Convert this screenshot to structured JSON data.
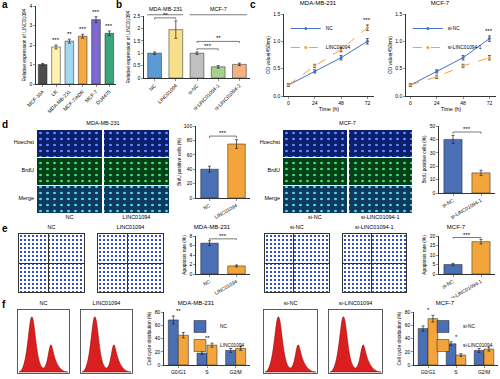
{
  "panel_labels": [
    "a",
    "b",
    "c",
    "d",
    "e",
    "f"
  ],
  "chart_data": [
    {
      "type": "bar",
      "y_label": "Relative expression of LINC01094",
      "categories": [
        "MCF-10A",
        "LR",
        "MDA-MB-231",
        "MCF-7/ADR",
        "MCF-7",
        "DU4475"
      ],
      "values": [
        1,
        1.9,
        2.2,
        2.45,
        3.3,
        2.6
      ],
      "errors": [
        0.05,
        0.1,
        0.1,
        0.1,
        0.15,
        0.12
      ],
      "colors": [
        "#4d4d4d",
        "#fff2b3",
        "#9fd8ef",
        "#f5a742",
        "#7f6ad0",
        "#3aa57a"
      ],
      "ylim": [
        0,
        4
      ],
      "yticks": [
        0,
        1,
        2,
        3,
        4
      ],
      "grid": false,
      "annotations": [
        {
          "text": "***",
          "category": "LR"
        },
        {
          "text": "**",
          "category": "MDA-MB-231"
        },
        {
          "text": "***",
          "category": "MCF-7/ADR"
        },
        {
          "text": "***",
          "category": "MCF-7"
        },
        {
          "text": "***",
          "category": "DU4475"
        }
      ]
    },
    {
      "type": "bar",
      "y_label": "Relative expression of LINC01094",
      "categories": [
        "NC",
        "LINC01094",
        "si-NC",
        "si-LINC01094-1",
        "si-LINC01094-2"
      ],
      "values": [
        1,
        1.95,
        1,
        0.45,
        0.55
      ],
      "errors": [
        0.05,
        0.35,
        0.05,
        0.05,
        0.05
      ],
      "colors": [
        "#5b9bd5",
        "#f7e08a",
        "#c0c0c0",
        "#a9d18e",
        "#f4b183"
      ],
      "ylim": [
        0,
        2.5
      ],
      "yticks": [
        0,
        0.5,
        1,
        1.5,
        2,
        2.5
      ],
      "grid": false,
      "groups": [
        {
          "text": "MDA-MB-231",
          "from": "NC",
          "to": "LINC01094"
        },
        {
          "text": "MCF-7",
          "from": "si-NC",
          "to": "si-LINC01094-2"
        }
      ],
      "annotations": [
        {
          "text": "**",
          "from": "NC",
          "to": "LINC01094"
        },
        {
          "text": "***",
          "from": "si-NC",
          "to": "si-LINC01094-1"
        },
        {
          "text": "**",
          "from": "si-NC",
          "to": "si-LINC01094-2"
        }
      ]
    },
    {
      "type": "line",
      "title": "MDA-MB-231",
      "x_label": "Time (h)",
      "y_label": "OD value(450nm)",
      "x": [
        0,
        24,
        48,
        72
      ],
      "xlim": [
        -4,
        78
      ],
      "xticks": [
        0,
        24,
        48,
        72
      ],
      "ylim": [
        0,
        1.5
      ],
      "yticks": [
        {
          "value": 0,
          "label": "0.0"
        },
        {
          "value": 0.5,
          "label": "0.5"
        },
        {
          "value": 1,
          "label": "1.0"
        },
        {
          "value": 1.5,
          "label": "1.5"
        }
      ],
      "grid": false,
      "legend": "upper left",
      "series": [
        {
          "name": "NC",
          "color": "#4472c4",
          "line_style": "solid",
          "marker": "circle",
          "values": [
            0.2,
            0.45,
            0.7,
            1.0
          ],
          "errors": [
            0.02,
            0.03,
            0.04,
            0.05
          ]
        },
        {
          "name": "LINC01094",
          "color": "#f4a040",
          "line_style": "dashed",
          "marker": "circle",
          "values": [
            0.2,
            0.55,
            0.85,
            1.25
          ],
          "errors": [
            0.02,
            0.03,
            0.04,
            0.05
          ]
        }
      ],
      "annotations": [
        {
          "text": "***",
          "x": 72
        }
      ]
    },
    {
      "type": "line",
      "title": "MCF-7",
      "x_label": "Time (h)",
      "y_label": "OD value(450nm)",
      "x": [
        0,
        24,
        48,
        72
      ],
      "xlim": [
        -4,
        78
      ],
      "xticks": [
        0,
        24,
        48,
        72
      ],
      "ylim": [
        0,
        1.5
      ],
      "yticks": [
        {
          "value": 0,
          "label": "0.0"
        },
        {
          "value": 0.5,
          "label": "0.5"
        },
        {
          "value": 1,
          "label": "1.0"
        },
        {
          "value": 1.5,
          "label": "1.5"
        }
      ],
      "grid": false,
      "legend": "upper left",
      "series": [
        {
          "name": "si-NC",
          "color": "#4472c4",
          "line_style": "solid",
          "marker": "circle",
          "values": [
            0.2,
            0.45,
            0.7,
            1.05
          ],
          "errors": [
            0.02,
            0.03,
            0.04,
            0.05
          ]
        },
        {
          "name": "si-LINC01094-1",
          "color": "#f4a040",
          "line_style": "dashed",
          "marker": "circle",
          "values": [
            0.2,
            0.35,
            0.55,
            0.7
          ],
          "errors": [
            0.02,
            0.03,
            0.03,
            0.04
          ]
        }
      ],
      "annotations": [
        {
          "text": "***",
          "x": 72
        }
      ]
    },
    {
      "type": "bar",
      "y_label": "BrdU positive cells (%)",
      "categories": [
        "NC",
        "LINC01094"
      ],
      "values": [
        40,
        75
      ],
      "errors": [
        4,
        6
      ],
      "colors": [
        "#4a6fb5",
        "#f3a43b"
      ],
      "ylim": [
        0,
        100
      ],
      "yticks": [
        0,
        20,
        40,
        60,
        80,
        100
      ],
      "grid": false,
      "annotations": [
        {
          "text": "***",
          "from": "NC",
          "to": "LINC01094"
        }
      ]
    },
    {
      "type": "bar",
      "y_label": "BrdU positive cells (%)",
      "categories": [
        "si-NC",
        "si-LINC01094-1"
      ],
      "values": [
        40,
        15
      ],
      "errors": [
        3,
        2
      ],
      "colors": [
        "#4a6fb5",
        "#f3a43b"
      ],
      "ylim": [
        0,
        50
      ],
      "yticks": [
        0,
        10,
        20,
        30,
        40,
        50
      ],
      "grid": false,
      "annotations": [
        {
          "text": "***",
          "from": "si-NC",
          "to": "si-LINC01094-1"
        }
      ]
    },
    {
      "type": "bar",
      "title": "MDA-MB-231",
      "y_label": "Apoptosis rate (%)",
      "categories": [
        "NC",
        "LINC01094"
      ],
      "values": [
        6.5,
        1.7
      ],
      "errors": [
        0.5,
        0.2
      ],
      "colors": [
        "#4a6fb5",
        "#f3a43b"
      ],
      "ylim": [
        0,
        8
      ],
      "yticks": [
        0,
        2,
        4,
        6,
        8
      ],
      "grid": false,
      "annotations": [
        {
          "text": "***",
          "from": "NC",
          "to": "LINC01094"
        }
      ]
    },
    {
      "type": "bar",
      "title": "MCF-7",
      "y_label": "Apoptosis rate (%)",
      "categories": [
        "si-NC",
        "si-LINC01094-1"
      ],
      "values": [
        5,
        17
      ],
      "errors": [
        0.6,
        1.2
      ],
      "colors": [
        "#4a6fb5",
        "#f3a43b"
      ],
      "ylim": [
        0,
        20
      ],
      "yticks": [
        0,
        5,
        10,
        15,
        20
      ],
      "grid": false,
      "annotations": [
        {
          "text": "***",
          "from": "si-NC",
          "to": "si-LINC01094-1"
        }
      ]
    },
    {
      "type": "bar",
      "title": "MDA-MB-231",
      "y_label": "Cell cycle distribution (%)",
      "categories": [
        "G0/G1",
        "S",
        "G2/M"
      ],
      "ylim": [
        0,
        80
      ],
      "yticks": [
        0,
        20,
        40,
        60,
        80
      ],
      "grid": false,
      "legend": "upper right",
      "series": [
        {
          "name": "NC",
          "color": "#4a6fb5",
          "values": [
            68,
            18,
            22
          ],
          "errors": [
            6,
            2,
            3
          ]
        },
        {
          "name": "LINC01094",
          "color": "#f3a43b",
          "values": [
            45,
            30,
            25
          ],
          "errors": [
            4,
            3,
            3
          ]
        }
      ],
      "annotations": [
        {
          "text": "**",
          "category": "G0/G1"
        },
        {
          "text": "**",
          "category": "S"
        }
      ]
    },
    {
      "type": "bar",
      "title": "MCF-7",
      "y_label": "Cell cycle distribution (%)",
      "categories": [
        "G0/G1",
        "S",
        "G2/M"
      ],
      "ylim": [
        0,
        80
      ],
      "yticks": [
        0,
        20,
        40,
        60,
        80
      ],
      "grid": false,
      "legend": "upper right",
      "series": [
        {
          "name": "si-NC",
          "color": "#4a6fb5",
          "values": [
            55,
            32,
            22
          ],
          "errors": [
            4,
            3,
            3
          ]
        },
        {
          "name": "si-LINC01094",
          "color": "#f3a43b",
          "values": [
            70,
            15,
            24
          ],
          "errors": [
            5,
            2,
            3
          ]
        }
      ],
      "annotations": [
        {
          "text": "*",
          "category": "G0/G1"
        },
        {
          "text": "*",
          "category": "S"
        }
      ]
    }
  ],
  "image_panels": {
    "d_left": {
      "title": "MDA-MB-231",
      "rows": [
        "Hoechst",
        "BrdU",
        "Merge"
      ],
      "columns": [
        "NC",
        "LINC01094"
      ]
    },
    "d_right": {
      "title": "MCF-7",
      "rows": [
        "Hoechst",
        "BrdU",
        "Merge"
      ],
      "columns": [
        "si-NC",
        "si-LINC01094-1"
      ]
    },
    "e_left": {
      "columns": [
        "NC",
        "LINC01094"
      ]
    },
    "e_right": {
      "columns": [
        "si-NC",
        "si-LINC01094-1"
      ]
    },
    "f_left": {
      "columns": [
        "NC",
        "LINC01094"
      ]
    },
    "f_right": {
      "columns": [
        "si-NC",
        "si-LINC01094"
      ]
    }
  }
}
